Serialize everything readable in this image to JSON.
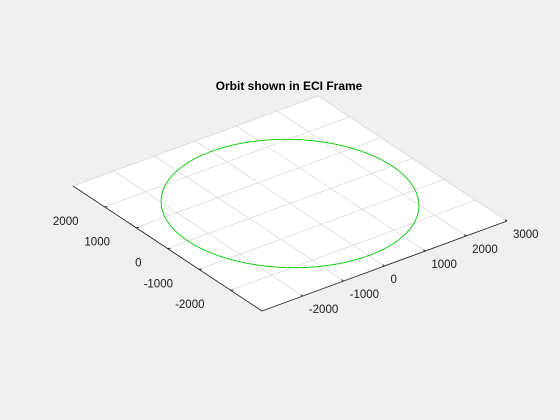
{
  "chart_data": {
    "type": "line",
    "title": "Orbit shown in ECI Frame",
    "xlabel": "",
    "ylabel": "",
    "zlabel": "",
    "xlim": [
      -3000,
      3000
    ],
    "ylim": [
      -3000,
      3000
    ],
    "x_ticks": [
      "-2000",
      "-1000",
      "0",
      "1000",
      "2000",
      "3000"
    ],
    "x_tick_values": [
      -2000,
      -1000,
      0,
      1000,
      2000,
      3000
    ],
    "y_ticks": [
      "-2000",
      "-1000",
      "0",
      "1000",
      "2000"
    ],
    "y_tick_values": [
      -2000,
      -1000,
      0,
      1000,
      2000
    ],
    "grid": true,
    "series": [
      {
        "shape": "circle",
        "center": [
          0,
          0
        ],
        "radius": 2500,
        "color": "#00cc00"
      }
    ]
  }
}
